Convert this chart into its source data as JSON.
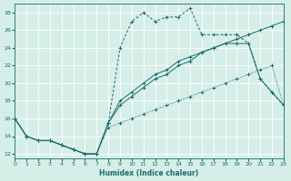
{
  "xlabel": "Humidex (Indice chaleur)",
  "bg_color": "#d6eee8",
  "grid_color": "#b8ddd5",
  "line_color": "#1a6b6b",
  "xlim": [
    0,
    23
  ],
  "ylim": [
    11.5,
    29
  ],
  "xticks": [
    0,
    1,
    2,
    3,
    4,
    5,
    6,
    7,
    8,
    9,
    10,
    11,
    12,
    13,
    14,
    15,
    16,
    17,
    18,
    19,
    20,
    21,
    22,
    23
  ],
  "yticks": [
    12,
    14,
    16,
    18,
    20,
    22,
    24,
    26,
    28
  ],
  "line_dotted_x": [
    0,
    1,
    2,
    3,
    4,
    5,
    6,
    7,
    8,
    9,
    10,
    11,
    12,
    13,
    14,
    15,
    16,
    17,
    18,
    19,
    20,
    21,
    22,
    23
  ],
  "line_dotted_y": [
    16,
    14,
    13.5,
    13.5,
    13,
    12.5,
    12,
    12,
    15.5,
    18,
    19,
    20,
    21,
    21.5,
    22.5,
    23,
    23.5,
    24,
    24.5,
    25,
    25.5,
    26,
    26.5,
    27
  ],
  "line_dashed_x": [
    0,
    1,
    2,
    3,
    4,
    5,
    6,
    7,
    8,
    9,
    10,
    11,
    12,
    13,
    14,
    15,
    16,
    17,
    18,
    19,
    20,
    21,
    22,
    23
  ],
  "line_dashed_y": [
    16,
    14,
    13.5,
    13.5,
    13,
    12.5,
    12,
    12,
    15.5,
    24,
    27,
    28,
    27,
    27.5,
    27.5,
    28.5,
    25.5,
    25.5,
    25.5,
    25.5,
    24.5,
    20.5,
    19,
    17.5
  ],
  "line_solid1_x": [
    0,
    1,
    2,
    3,
    4,
    5,
    6,
    7,
    8,
    9,
    10,
    11,
    12,
    13,
    14,
    15,
    16,
    17,
    18,
    19,
    20,
    21,
    22,
    23
  ],
  "line_solid1_y": [
    16,
    14,
    13.5,
    13.5,
    13,
    12.5,
    12,
    12,
    15.5,
    17.5,
    18.5,
    19.5,
    20.5,
    21,
    22,
    22.5,
    23.5,
    24,
    24.5,
    24.5,
    24.5,
    20.5,
    19,
    17.5
  ],
  "line_solid2_x": [
    0,
    1,
    2,
    3,
    4,
    5,
    6,
    7,
    8,
    9,
    10,
    11,
    12,
    13,
    14,
    15,
    16,
    17,
    18,
    19,
    20,
    21,
    22,
    23
  ],
  "line_solid2_y": [
    16,
    14,
    13.5,
    13.5,
    13,
    12.5,
    12,
    12,
    15,
    15.5,
    16,
    16.5,
    17,
    17.5,
    18,
    18.5,
    19,
    19.5,
    20,
    20.5,
    21,
    21.5,
    22,
    17.5
  ]
}
